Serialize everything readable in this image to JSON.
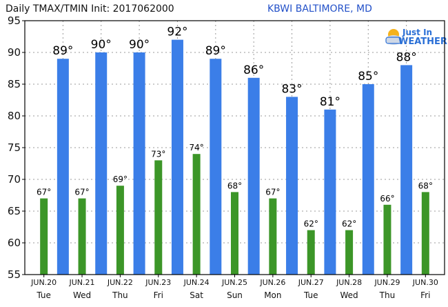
{
  "header": {
    "title": "Daily TMAX/TMIN Init: 2017062000",
    "station": "KBWI BALTIMORE, MD"
  },
  "logo": {
    "line1": "Just In",
    "line2": "WEATHER",
    "icon": "cloud-sun-icon"
  },
  "colors": {
    "tmax": "#3b7ee8",
    "tmin": "#3c9628",
    "station": "#2250c8",
    "grid": "#999999"
  },
  "chart_data": {
    "type": "bar",
    "title": "Daily TMAX/TMIN Init: 2017062000",
    "xlabel": "",
    "ylabel": "",
    "ylim": [
      55,
      95
    ],
    "yticks": [
      55,
      60,
      65,
      70,
      75,
      80,
      85,
      90,
      95
    ],
    "grid": true,
    "categories": [
      "JUN.20",
      "JUN.21",
      "JUN.22",
      "JUN.23",
      "JUN.24",
      "JUN.25",
      "JUN.26",
      "JUN.27",
      "JUN.28",
      "JUN.29",
      "JUN.30"
    ],
    "days": [
      "Tue",
      "Wed",
      "Thu",
      "Fri",
      "Sat",
      "Sun",
      "Mon",
      "Tue",
      "Wed",
      "Thu",
      "Fri"
    ],
    "tmin": [
      67,
      67,
      69,
      73,
      74,
      68,
      67,
      62,
      62,
      66,
      68
    ],
    "tmin_labels": [
      "67°",
      "67°",
      "69°",
      "73°",
      "74°",
      "68°",
      "67°",
      "62°",
      "62°",
      "66°",
      "68°"
    ],
    "tmax": [
      89,
      90,
      90,
      92,
      89,
      86,
      83,
      81,
      85,
      88
    ],
    "tmax_labels": [
      "89°",
      "90°",
      "90°",
      "92°",
      "89°",
      "86°",
      "83°",
      "81°",
      "85°",
      "88°"
    ]
  }
}
